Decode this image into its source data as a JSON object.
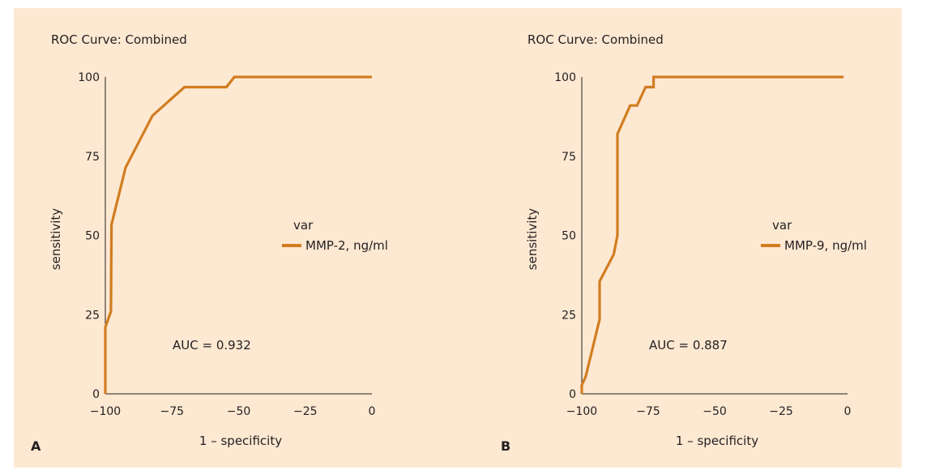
{
  "chart_data": [
    {
      "type": "line",
      "panel_label": "A",
      "title": "ROC Curve: Combined",
      "xlabel": "1 – specificity",
      "ylabel": "sensitivity",
      "xlim": [
        -100,
        0
      ],
      "ylim": [
        0,
        100
      ],
      "xticks": [
        "−100",
        "−75",
        "−50",
        "−25",
        "0"
      ],
      "xtick_values": [
        -100,
        -75,
        -50,
        -25,
        0
      ],
      "yticks": [
        "0",
        "25",
        "50",
        "75",
        "100"
      ],
      "ytick_values": [
        0,
        25,
        50,
        75,
        100
      ],
      "grid": false,
      "legend": {
        "title": "var",
        "position": "right"
      },
      "annotation": "AUC = 0.932",
      "series": [
        {
          "name": "MMP-2, ng/ml",
          "color": "#d17d1f",
          "x": [
            -100,
            -100,
            -97.9,
            -97.7,
            -92.4,
            -82.3,
            -70.3,
            -54.6,
            -51.6,
            0
          ],
          "y": [
            0,
            21,
            26,
            53.4,
            71.4,
            87.8,
            96.8,
            96.8,
            100,
            100
          ]
        }
      ]
    },
    {
      "type": "line",
      "panel_label": "B",
      "title": "ROC Curve: Combined",
      "xlabel": "1 – specificity",
      "ylabel": "sensitivity",
      "xlim": [
        -100,
        0
      ],
      "ylim": [
        0,
        100
      ],
      "xticks": [
        "−100",
        "−75",
        "−50",
        "−25",
        "0"
      ],
      "xtick_values": [
        -100,
        -75,
        -50,
        -25,
        0
      ],
      "yticks": [
        "0",
        "25",
        "50",
        "75",
        "100"
      ],
      "ytick_values": [
        0,
        25,
        50,
        75,
        100
      ],
      "grid": false,
      "legend": {
        "title": "var",
        "position": "right"
      },
      "annotation": "AUC = 0.887",
      "series": [
        {
          "name": "MMP-9, ng/ml",
          "color": "#d17d1f",
          "x": [
            -100,
            -100,
            -98.5,
            -93.3,
            -93.3,
            -88,
            -86.6,
            -86.6,
            -81.8,
            -79.2,
            -76,
            -73,
            -73,
            -1.5
          ],
          "y": [
            0,
            2.7,
            5.5,
            23.5,
            35.5,
            44,
            50,
            82,
            91,
            91,
            96.8,
            96.8,
            100,
            100
          ]
        }
      ]
    }
  ]
}
